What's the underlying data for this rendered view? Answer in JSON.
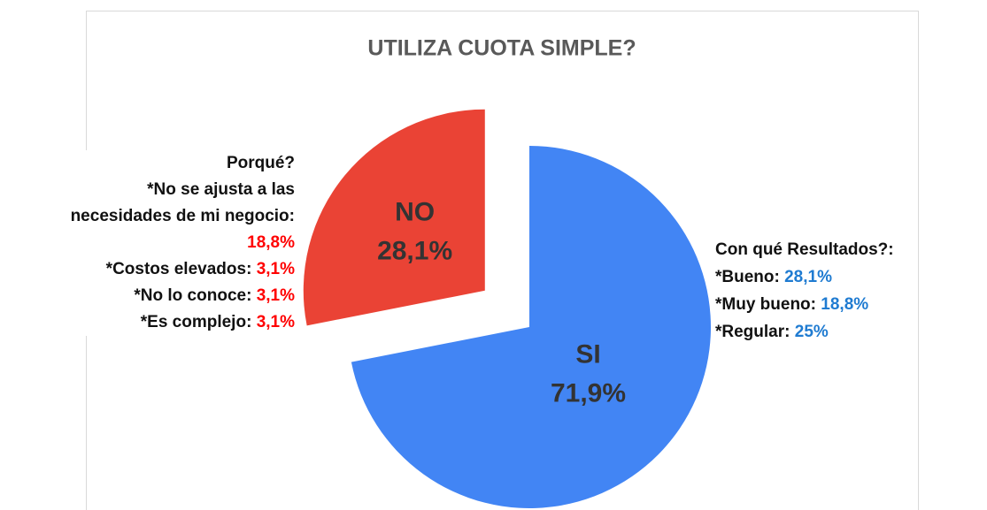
{
  "chart_data": {
    "type": "pie",
    "title": "UTILIZA CUOTA SIMPLE?",
    "categories": [
      "SI",
      "NO"
    ],
    "values": [
      71.9,
      28.1
    ],
    "value_labels": [
      "71,9%",
      "28,1%"
    ],
    "colors": [
      "#4285f4",
      "#ea4335"
    ]
  },
  "left_note": {
    "heading": "Porqué?",
    "items": [
      {
        "label": "*No se ajusta a las necesidades de mi negocio:",
        "value": "18,8%"
      },
      {
        "label": "*Costos elevados:",
        "value": "3,1%"
      },
      {
        "label": "*No lo conoce:",
        "value": "3,1%"
      },
      {
        "label": "*Es complejo:",
        "value": "3,1%"
      }
    ]
  },
  "right_note": {
    "heading": "Con qué Resultados?:",
    "items": [
      {
        "label": "*Bueno:",
        "value": "28,1%"
      },
      {
        "label": "*Muy bueno:",
        "value": "18,8%"
      },
      {
        "label": "*Regular:",
        "value": "25%"
      }
    ]
  }
}
